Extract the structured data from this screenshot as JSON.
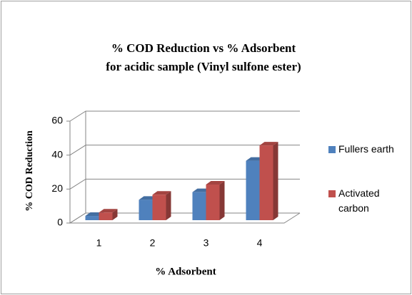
{
  "chart_data": {
    "type": "bar3d",
    "title": [
      "% COD Reduction vs % Adsorbent",
      "for acidic sample (Vinyl sulfone ester)"
    ],
    "y_label": "% COD Reduction",
    "x_label": "% Adsorbent",
    "categories": [
      "1",
      "2",
      "3",
      "4"
    ],
    "series": [
      {
        "name": "Fullers earth",
        "color": "#4f81bd",
        "values": [
          2.5,
          12,
          16.5,
          35
        ]
      },
      {
        "name": "Activated carbon",
        "color": "#c0504d",
        "values": [
          4.5,
          15,
          21,
          44
        ]
      }
    ],
    "ylim": [
      0,
      60
    ],
    "yticks": [
      0,
      20,
      40,
      60
    ],
    "grid": true,
    "legend": "right"
  }
}
